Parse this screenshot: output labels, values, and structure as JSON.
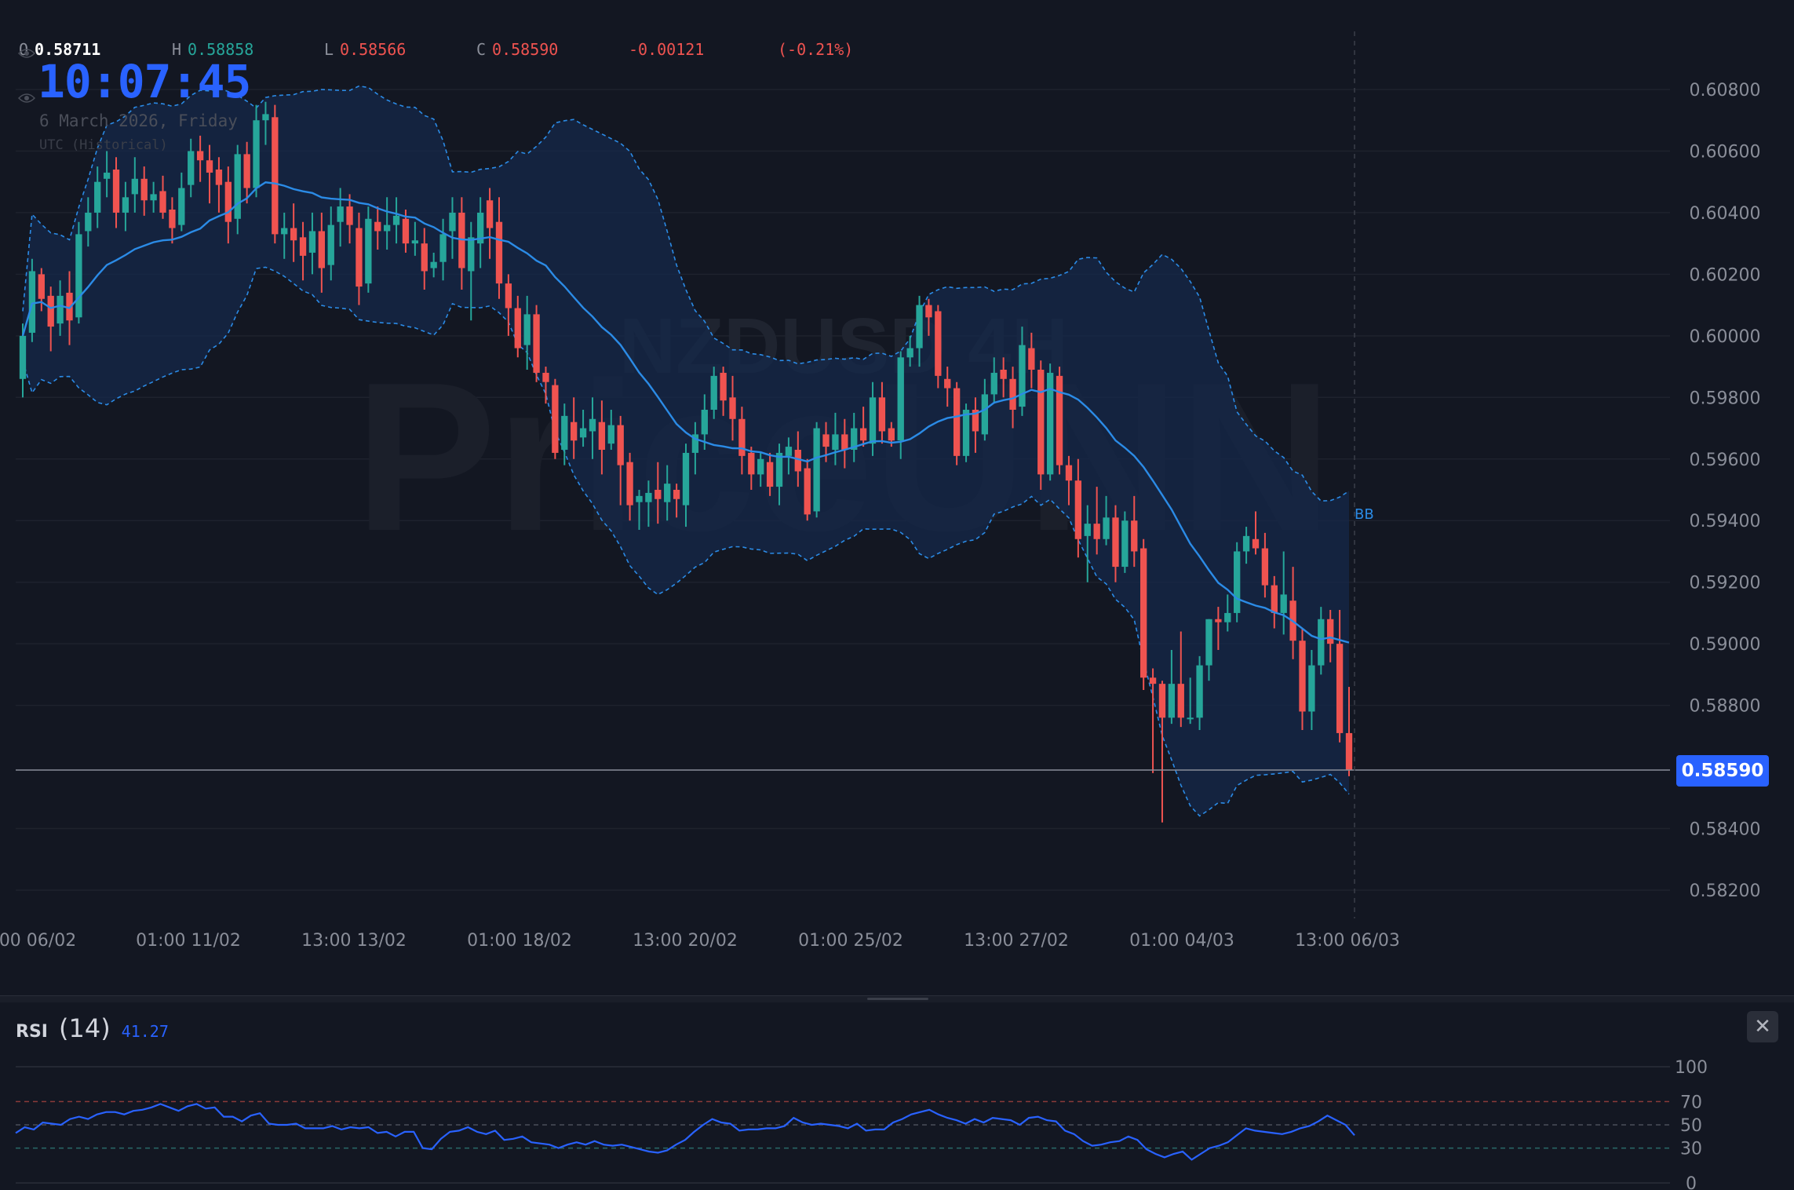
{
  "ohlc": {
    "open_key": "O",
    "open": "0.58711",
    "high_key": "H",
    "high": "0.58858",
    "low_key": "L",
    "low": "0.58566",
    "close_key": "C",
    "close": "0.58590",
    "change": "-0.00121",
    "change_pct": "(-0.21%)"
  },
  "clock": {
    "time": "10:07:45",
    "date": "6 March 2026, Friday",
    "timezone": "UTC (Historical)"
  },
  "watermark": {
    "symbol": "NZDUSD 4H",
    "brand": "PriceUNN"
  },
  "price_axis": {
    "ticks": [
      "0.60800",
      "0.60600",
      "0.60400",
      "0.60200",
      "0.60000",
      "0.59800",
      "0.59600",
      "0.59400",
      "0.59200",
      "0.59000",
      "0.58800",
      "0.58400",
      "0.58200"
    ],
    "current_price": "0.58590"
  },
  "time_axis": {
    "labels": [
      "00 06/02",
      "01:00 11/02",
      "13:00 13/02",
      "01:00 18/02",
      "13:00 20/02",
      "01:00 25/02",
      "13:00 27/02",
      "01:00 04/03",
      "13:00 06/03"
    ]
  },
  "indicators": {
    "bb_label": "BB"
  },
  "rsi": {
    "name": "RSI",
    "param": "(14)",
    "value": "41.27",
    "levels": [
      "100",
      "70",
      "50",
      "30",
      "0"
    ]
  },
  "colors": {
    "up": "#26a69a",
    "down": "#ef5350",
    "accent": "#2962ff",
    "bb_line": "#2b8be6",
    "bb_fill": "#16284a",
    "rsi_line": "#2962ff"
  },
  "chart_data": {
    "type": "candlestick",
    "symbol": "NZDUSD",
    "timeframe": "4H",
    "ylim": [
      0.5811,
      0.6093
    ],
    "rsi_values": [
      43,
      48,
      46,
      52,
      51,
      50,
      55,
      57,
      55,
      59,
      61,
      61,
      59,
      62,
      63,
      65,
      68,
      65,
      62,
      66,
      68,
      64,
      65,
      57,
      57,
      53,
      58,
      60,
      51,
      50,
      50,
      51,
      47,
      47,
      47,
      49,
      46,
      48,
      47,
      48,
      43,
      44,
      40,
      44,
      44,
      30,
      29,
      38,
      44,
      45,
      48,
      44,
      42,
      45,
      37,
      38,
      40,
      35,
      34,
      33,
      30,
      33,
      35,
      33,
      36,
      33,
      32,
      33,
      31,
      29,
      27,
      26,
      28,
      33,
      37,
      44,
      50,
      55,
      52,
      51,
      45,
      46,
      46,
      47,
      47,
      49,
      56,
      52,
      50,
      51,
      50,
      49,
      47,
      51,
      45,
      46,
      46,
      52,
      55,
      59,
      61,
      63,
      59,
      56,
      54,
      51,
      55,
      52,
      56,
      55,
      54,
      50,
      56,
      57,
      54,
      53,
      45,
      42,
      36,
      32,
      33,
      35,
      36,
      40,
      37,
      29,
      25,
      22,
      25,
      27,
      20,
      25,
      30,
      32,
      35,
      41,
      47,
      45,
      44,
      43,
      42,
      44,
      47,
      49,
      53,
      58,
      54,
      50,
      41
    ],
    "candles": [
      [
        0.5986,
        0.6,
        0.598,
        0.6004
      ],
      [
        0.6001,
        0.6021,
        0.5998,
        0.6025
      ],
      [
        0.602,
        0.6012,
        0.6008,
        0.6022
      ],
      [
        0.6013,
        0.6003,
        0.5995,
        0.6016
      ],
      [
        0.6004,
        0.6013,
        0.6,
        0.6018
      ],
      [
        0.6014,
        0.6005,
        0.5997,
        0.6021
      ],
      [
        0.6006,
        0.6033,
        0.6004,
        0.6037
      ],
      [
        0.6034,
        0.604,
        0.6029,
        0.6045
      ],
      [
        0.604,
        0.605,
        0.6035,
        0.6055
      ],
      [
        0.6051,
        0.6053,
        0.6045,
        0.606
      ],
      [
        0.6054,
        0.604,
        0.6035,
        0.6058
      ],
      [
        0.604,
        0.6045,
        0.6034,
        0.605
      ],
      [
        0.6046,
        0.6051,
        0.604,
        0.6058
      ],
      [
        0.6051,
        0.6044,
        0.6039,
        0.6055
      ],
      [
        0.6044,
        0.6046,
        0.604,
        0.605
      ],
      [
        0.6047,
        0.604,
        0.6038,
        0.6052
      ],
      [
        0.6041,
        0.6035,
        0.603,
        0.6045
      ],
      [
        0.6036,
        0.6048,
        0.6034,
        0.6053
      ],
      [
        0.6049,
        0.606,
        0.6045,
        0.6064
      ],
      [
        0.606,
        0.6057,
        0.605,
        0.6065
      ],
      [
        0.6057,
        0.6053,
        0.6043,
        0.6062
      ],
      [
        0.6054,
        0.6049,
        0.604,
        0.6058
      ],
      [
        0.605,
        0.6037,
        0.603,
        0.6055
      ],
      [
        0.6038,
        0.6059,
        0.6033,
        0.6062
      ],
      [
        0.6059,
        0.6048,
        0.6043,
        0.6063
      ],
      [
        0.6048,
        0.607,
        0.6045,
        0.6075
      ],
      [
        0.607,
        0.6072,
        0.6062,
        0.6076
      ],
      [
        0.6071,
        0.6033,
        0.603,
        0.6075
      ],
      [
        0.6033,
        0.6035,
        0.6025,
        0.604
      ],
      [
        0.6035,
        0.6031,
        0.6024,
        0.6043
      ],
      [
        0.6032,
        0.6026,
        0.6018,
        0.6037
      ],
      [
        0.6027,
        0.6034,
        0.602,
        0.604
      ],
      [
        0.6034,
        0.6022,
        0.6014,
        0.604
      ],
      [
        0.6023,
        0.6036,
        0.6018,
        0.6042
      ],
      [
        0.6037,
        0.6042,
        0.6029,
        0.6048
      ],
      [
        0.6042,
        0.6036,
        0.603,
        0.6046
      ],
      [
        0.6035,
        0.6016,
        0.601,
        0.604
      ],
      [
        0.6017,
        0.6038,
        0.6014,
        0.6042
      ],
      [
        0.6037,
        0.6034,
        0.6028,
        0.6042
      ],
      [
        0.6034,
        0.6036,
        0.6028,
        0.6045
      ],
      [
        0.6036,
        0.6039,
        0.603,
        0.6045
      ],
      [
        0.6038,
        0.603,
        0.6027,
        0.6041
      ],
      [
        0.603,
        0.6031,
        0.6026,
        0.6037
      ],
      [
        0.603,
        0.6021,
        0.6015,
        0.6035
      ],
      [
        0.6022,
        0.6024,
        0.6019,
        0.6027
      ],
      [
        0.6024,
        0.6033,
        0.6018,
        0.6038
      ],
      [
        0.6034,
        0.604,
        0.6025,
        0.6045
      ],
      [
        0.604,
        0.6022,
        0.6015,
        0.6045
      ],
      [
        0.6021,
        0.6032,
        0.6005,
        0.6037
      ],
      [
        0.603,
        0.604,
        0.6022,
        0.6045
      ],
      [
        0.6044,
        0.6035,
        0.6025,
        0.6048
      ],
      [
        0.6037,
        0.6017,
        0.6012,
        0.6045
      ],
      [
        0.6017,
        0.6009,
        0.6,
        0.602
      ],
      [
        0.6009,
        0.5996,
        0.5993,
        0.6013
      ],
      [
        0.5997,
        0.6007,
        0.5989,
        0.6013
      ],
      [
        0.6007,
        0.5988,
        0.5985,
        0.601
      ],
      [
        0.5988,
        0.5985,
        0.5978,
        0.599
      ],
      [
        0.5984,
        0.5962,
        0.596,
        0.5986
      ],
      [
        0.5963,
        0.5974,
        0.5958,
        0.5978
      ],
      [
        0.5972,
        0.5966,
        0.596,
        0.598
      ],
      [
        0.5967,
        0.597,
        0.5964,
        0.5976
      ],
      [
        0.5969,
        0.5973,
        0.596,
        0.598
      ],
      [
        0.5972,
        0.5963,
        0.5955,
        0.5979
      ],
      [
        0.5965,
        0.5971,
        0.5963,
        0.5976
      ],
      [
        0.5971,
        0.5958,
        0.5945,
        0.5974
      ],
      [
        0.5959,
        0.5945,
        0.594,
        0.5962
      ],
      [
        0.5946,
        0.5948,
        0.5937,
        0.595
      ],
      [
        0.5946,
        0.5949,
        0.5938,
        0.5953
      ],
      [
        0.595,
        0.5947,
        0.5939,
        0.5959
      ],
      [
        0.5946,
        0.5952,
        0.594,
        0.5958
      ],
      [
        0.595,
        0.5947,
        0.5941,
        0.5952
      ],
      [
        0.5945,
        0.5962,
        0.5938,
        0.5965
      ],
      [
        0.5962,
        0.5968,
        0.5955,
        0.5972
      ],
      [
        0.5968,
        0.5976,
        0.5963,
        0.5981
      ],
      [
        0.5976,
        0.5987,
        0.5973,
        0.599
      ],
      [
        0.5988,
        0.5979,
        0.5974,
        0.599
      ],
      [
        0.598,
        0.5973,
        0.5966,
        0.5987
      ],
      [
        0.5973,
        0.5961,
        0.5955,
        0.5977
      ],
      [
        0.5962,
        0.5955,
        0.595,
        0.5964
      ],
      [
        0.5955,
        0.596,
        0.5951,
        0.5962
      ],
      [
        0.5959,
        0.5951,
        0.5948,
        0.5962
      ],
      [
        0.5951,
        0.5962,
        0.5945,
        0.5965
      ],
      [
        0.5961,
        0.5964,
        0.5955,
        0.5967
      ],
      [
        0.5963,
        0.5956,
        0.5951,
        0.5969
      ],
      [
        0.5957,
        0.5942,
        0.594,
        0.596
      ],
      [
        0.5943,
        0.597,
        0.5941,
        0.5972
      ],
      [
        0.5968,
        0.5964,
        0.5959,
        0.5972
      ],
      [
        0.5963,
        0.5968,
        0.5958,
        0.5975
      ],
      [
        0.5968,
        0.5963,
        0.5957,
        0.5973
      ],
      [
        0.5963,
        0.597,
        0.5959,
        0.5975
      ],
      [
        0.597,
        0.5966,
        0.5964,
        0.5977
      ],
      [
        0.5965,
        0.598,
        0.5961,
        0.5985
      ],
      [
        0.598,
        0.5969,
        0.5965,
        0.5985
      ],
      [
        0.597,
        0.5966,
        0.5964,
        0.5972
      ],
      [
        0.5966,
        0.5993,
        0.596,
        0.5995
      ],
      [
        0.5993,
        0.5996,
        0.599,
        0.6
      ],
      [
        0.5996,
        0.601,
        0.599,
        0.6013
      ],
      [
        0.601,
        0.6006,
        0.6,
        0.6012
      ],
      [
        0.6008,
        0.5987,
        0.5983,
        0.601
      ],
      [
        0.5986,
        0.5983,
        0.5977,
        0.599
      ],
      [
        0.5983,
        0.5961,
        0.5958,
        0.5985
      ],
      [
        0.5961,
        0.5976,
        0.5959,
        0.5978
      ],
      [
        0.5976,
        0.5969,
        0.5962,
        0.598
      ],
      [
        0.5968,
        0.5981,
        0.5966,
        0.5986
      ],
      [
        0.5981,
        0.5988,
        0.5978,
        0.5993
      ],
      [
        0.5989,
        0.5986,
        0.598,
        0.5993
      ],
      [
        0.5986,
        0.5976,
        0.597,
        0.599
      ],
      [
        0.5977,
        0.5997,
        0.5974,
        0.6003
      ],
      [
        0.5996,
        0.5989,
        0.5983,
        0.6001
      ],
      [
        0.5989,
        0.5955,
        0.595,
        0.5992
      ],
      [
        0.5955,
        0.5988,
        0.5953,
        0.5991
      ],
      [
        0.5987,
        0.5958,
        0.5955,
        0.599
      ],
      [
        0.5958,
        0.5953,
        0.5945,
        0.5961
      ],
      [
        0.5953,
        0.5934,
        0.5928,
        0.596
      ],
      [
        0.5935,
        0.5939,
        0.592,
        0.5945
      ],
      [
        0.5939,
        0.5934,
        0.5929,
        0.5951
      ],
      [
        0.5934,
        0.5941,
        0.5932,
        0.5948
      ],
      [
        0.5941,
        0.5925,
        0.592,
        0.5945
      ],
      [
        0.5925,
        0.594,
        0.5923,
        0.5943
      ],
      [
        0.594,
        0.593,
        0.5925,
        0.5948
      ],
      [
        0.5931,
        0.5889,
        0.5885,
        0.5934
      ],
      [
        0.5889,
        0.5887,
        0.5858,
        0.5892
      ],
      [
        0.5887,
        0.5876,
        0.5842,
        0.5888
      ],
      [
        0.5876,
        0.5887,
        0.5874,
        0.5898
      ],
      [
        0.5887,
        0.5876,
        0.5873,
        0.5904
      ],
      [
        0.5876,
        0.5876,
        0.5874,
        0.5889
      ],
      [
        0.5876,
        0.5893,
        0.5872,
        0.5896
      ],
      [
        0.5893,
        0.5908,
        0.5888,
        0.5908
      ],
      [
        0.5908,
        0.5907,
        0.5898,
        0.5912
      ],
      [
        0.5907,
        0.591,
        0.5904,
        0.5916
      ],
      [
        0.591,
        0.593,
        0.5907,
        0.5933
      ],
      [
        0.593,
        0.5935,
        0.5926,
        0.5938
      ],
      [
        0.5934,
        0.5931,
        0.5929,
        0.5943
      ],
      [
        0.5931,
        0.5919,
        0.5915,
        0.5936
      ],
      [
        0.5919,
        0.591,
        0.5905,
        0.5922
      ],
      [
        0.591,
        0.5916,
        0.5903,
        0.593
      ],
      [
        0.5914,
        0.5901,
        0.5895,
        0.5925
      ],
      [
        0.5901,
        0.5878,
        0.5872,
        0.5905
      ],
      [
        0.5878,
        0.5893,
        0.5872,
        0.5898
      ],
      [
        0.5893,
        0.5908,
        0.589,
        0.5912
      ],
      [
        0.5908,
        0.59,
        0.5894,
        0.5911
      ],
      [
        0.59,
        0.5871,
        0.5868,
        0.5911
      ],
      [
        0.5871,
        0.5859,
        0.5857,
        0.5886
      ]
    ]
  }
}
